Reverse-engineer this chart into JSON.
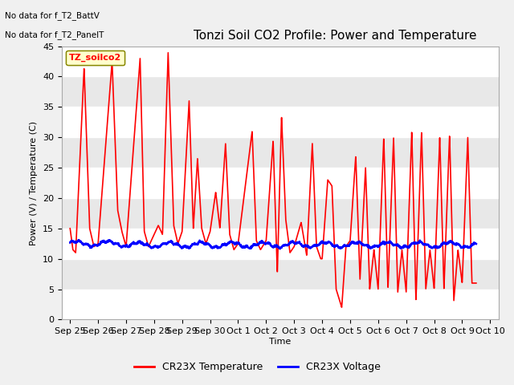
{
  "title": "Tonzi Soil CO2 Profile: Power and Temperature",
  "ylabel": "Power (V) / Temperature (C)",
  "xlabel": "Time",
  "no_data_text": [
    "No data for f_T2_BattV",
    "No data for f_T2_PanelT"
  ],
  "legend_label": "TZ_soilco2",
  "legend_entries": [
    "CR23X Temperature",
    "CR23X Voltage"
  ],
  "temp_color": "#ff0000",
  "volt_color": "#0000ff",
  "temp_linewidth": 1.2,
  "volt_linewidth": 1.8,
  "title_fontsize": 11,
  "label_fontsize": 8,
  "tick_fontsize": 8,
  "ylim": [
    0,
    45
  ],
  "yticks": [
    0,
    5,
    10,
    15,
    20,
    25,
    30,
    35,
    40,
    45
  ],
  "xtick_labels": [
    "Sep 25",
    "Sep 26",
    "Sep 27",
    "Sep 28",
    "Sep 29",
    "Sep 30",
    "Oct 1",
    "Oct 2",
    "Oct 3",
    "Oct 4",
    "Oct 5",
    "Oct 6",
    "Oct 7",
    "Oct 8",
    "Oct 9",
    "Oct 10"
  ],
  "xtick_positions": [
    0,
    1,
    2,
    3,
    4,
    5,
    6,
    7,
    8,
    9,
    10,
    11,
    12,
    13,
    14,
    15
  ],
  "band_colors": [
    "white",
    "#e8e8e8"
  ],
  "band_edges": [
    0,
    5,
    10,
    15,
    20,
    25,
    30,
    35,
    40,
    45
  ],
  "fig_facecolor": "#f0f0f0",
  "plot_bg": "white"
}
